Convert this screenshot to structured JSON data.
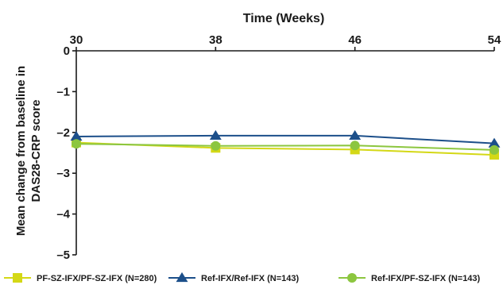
{
  "chart_data": {
    "type": "line",
    "title": "",
    "xlabel": "Time (Weeks)",
    "ylabel_lines": [
      "Mean change from baseline in",
      "DAS28-CRP score"
    ],
    "x": [
      30,
      38,
      46,
      54
    ],
    "x_tick_labels": [
      "30",
      "38",
      "46",
      "54"
    ],
    "xlim": [
      30,
      54
    ],
    "ylim": [
      -5,
      0
    ],
    "y_ticks": [
      0,
      -1,
      -2,
      -3,
      -4,
      -5
    ],
    "y_tick_labels": [
      "0",
      "–1",
      "–2",
      "–3",
      "–4",
      "–5"
    ],
    "x_axis_position": "top",
    "grid": false,
    "legend_position": "bottom",
    "series": [
      {
        "name": "PF-SZ-IFX/PF-SZ-IFX (N=280)",
        "values": [
          -2.25,
          -2.38,
          -2.42,
          -2.55
        ],
        "color": "#d4d816",
        "marker": "square"
      },
      {
        "name": "Ref-IFX/Ref-IFX (N=143)",
        "values": [
          -2.1,
          -2.08,
          -2.08,
          -2.27
        ],
        "color": "#1c4f8a",
        "marker": "triangle"
      },
      {
        "name": "Ref-IFX/PF-SZ-IFX (N=143)",
        "values": [
          -2.28,
          -2.33,
          -2.32,
          -2.43
        ],
        "color": "#8cc63f",
        "marker": "circle"
      }
    ]
  }
}
